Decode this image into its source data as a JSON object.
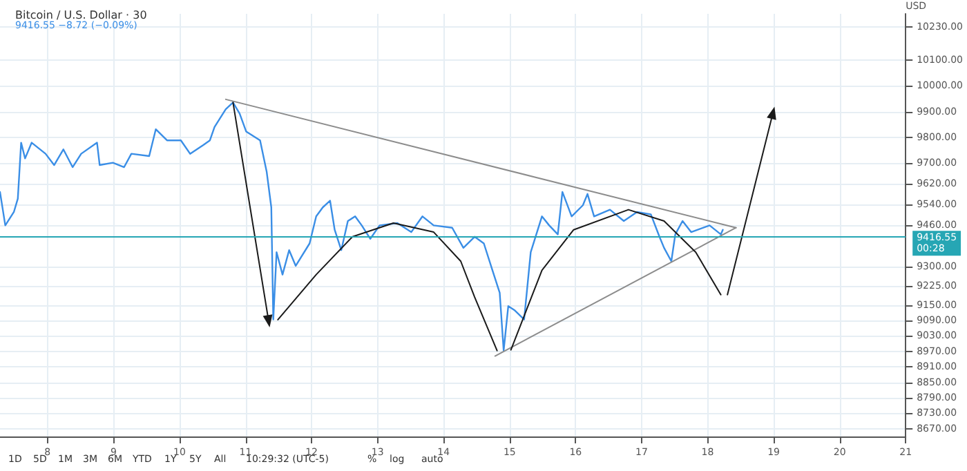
{
  "chart_data": {
    "type": "line",
    "title": "Bitcoin / U.S. Dollar · 30",
    "subtitle": "9416.55 −8.72 (−0.09%)",
    "ylabel": "USD",
    "xlim": [
      7.28,
      21.0
    ],
    "xticks": [
      8,
      9,
      10,
      11,
      12,
      13,
      14,
      15,
      16,
      17,
      18,
      19,
      20,
      21
    ],
    "ylim": [
      8640,
      10280
    ],
    "yticks": [
      {
        "value": 10230,
        "label": "10230.00"
      },
      {
        "value": 10100,
        "label": "10100.00"
      },
      {
        "value": 10000,
        "label": "10000.00"
      },
      {
        "value": 9900,
        "label": "9900.00"
      },
      {
        "value": 9800,
        "label": "9800.00"
      },
      {
        "value": 9700,
        "label": "9700.00"
      },
      {
        "value": 9620,
        "label": "9620.00"
      },
      {
        "value": 9540,
        "label": "9540.00"
      },
      {
        "value": 9460,
        "label": "9460.00"
      },
      {
        "value": 9300,
        "label": "9300.00"
      },
      {
        "value": 9225,
        "label": "9225.00"
      },
      {
        "value": 9150,
        "label": "9150.00"
      },
      {
        "value": 9090,
        "label": "9090.00"
      },
      {
        "value": 9030,
        "label": "9030.00"
      },
      {
        "value": 8970,
        "label": "8970.00"
      },
      {
        "value": 8910,
        "label": "8910.00"
      },
      {
        "value": 8850,
        "label": "8850.00"
      },
      {
        "value": 8790,
        "label": "8790.00"
      },
      {
        "value": 8730,
        "label": "8730.00"
      },
      {
        "value": 8670,
        "label": "8670.00"
      }
    ],
    "grid": true,
    "marker": "none",
    "line_style": "solid",
    "series": [
      {
        "color": "#3a8ee6",
        "x": [
          7.28,
          7.36,
          7.49,
          7.55,
          7.6,
          7.66,
          7.76,
          7.97,
          8.1,
          8.24,
          8.38,
          8.51,
          8.75,
          8.79,
          8.99,
          9.16,
          9.27,
          9.54,
          9.64,
          9.81,
          10.02,
          10.16,
          10.36,
          10.46,
          10.53,
          10.7,
          10.81,
          10.91,
          11.01,
          11.22,
          11.32,
          11.39,
          11.42,
          11.47,
          11.56,
          11.66,
          11.76,
          11.97,
          12.07,
          12.17,
          12.28,
          12.35,
          12.45,
          12.55,
          12.66,
          12.76,
          12.89,
          13.03,
          13.3,
          13.51,
          13.68,
          13.85,
          14.13,
          14.3,
          14.47,
          14.61,
          14.74,
          14.85,
          14.91,
          14.98,
          15.08,
          15.22,
          15.32,
          15.49,
          15.6,
          15.73,
          15.8,
          15.94,
          16.11,
          16.18,
          16.28,
          16.52,
          16.73,
          16.93,
          17.14,
          17.27,
          17.34,
          17.45,
          17.51,
          17.62,
          17.75,
          18.03,
          18.2,
          18.23
        ],
        "values": [
          9589,
          9459,
          9511,
          9563,
          9780,
          9719,
          9780,
          9737,
          9693,
          9754,
          9685,
          9737,
          9780,
          9693,
          9702,
          9685,
          9737,
          9728,
          9832,
          9789,
          9789,
          9737,
          9771,
          9789,
          9841,
          9910,
          9936,
          9893,
          9823,
          9789,
          9667,
          9529,
          9094,
          9355,
          9268,
          9363,
          9302,
          9389,
          9494,
          9529,
          9555,
          9442,
          9363,
          9476,
          9494,
          9459,
          9407,
          9459,
          9468,
          9433,
          9494,
          9459,
          9450,
          9372,
          9415,
          9389,
          9285,
          9198,
          8973,
          9146,
          9129,
          9094,
          9355,
          9494,
          9459,
          9424,
          9589,
          9494,
          9537,
          9581,
          9494,
          9520,
          9476,
          9511,
          9502,
          9415,
          9372,
          9320,
          9424,
          9476,
          9433,
          9459,
          9424,
          9442
        ]
      },
      {
        "color": "#8c8c8c",
        "x": [
          10.7,
          18.43
        ],
        "values": [
          9948,
          9450
        ]
      },
      {
        "color": "#8c8c8c",
        "x": [
          14.78,
          18.43
        ],
        "values": [
          8952,
          9450
        ]
      },
      {
        "color": "#1a1a1a",
        "marker": "triangle",
        "x": [
          10.81,
          11.35
        ],
        "values": [
          9936,
          9087
        ]
      },
      {
        "color": "#1a1a1a",
        "x": [
          11.49,
          12.07,
          12.62,
          13.24,
          13.85,
          14.26,
          14.47,
          14.81
        ],
        "values": [
          9093,
          9268,
          9415,
          9468,
          9433,
          9320,
          9181,
          8973
        ]
      },
      {
        "color": "#1a1a1a",
        "x": [
          15.02,
          15.49,
          15.97,
          16.8,
          17.34,
          17.82,
          18.2
        ],
        "values": [
          8976,
          9285,
          9442,
          9520,
          9476,
          9355,
          9190
        ]
      },
      {
        "color": "#1a1a1a",
        "marker": "triangle",
        "x": [
          18.3,
          18.99
        ],
        "values": [
          9190,
          9896
        ]
      }
    ],
    "ref_lines": [
      {
        "axis": "y",
        "value": 9416.55,
        "label": "9416.55\n00:28",
        "color": "#26a6b4"
      }
    ],
    "annotations": [
      "1D",
      "5D",
      "1M",
      "3M",
      "6M",
      "YTD",
      "1Y",
      "5Y",
      "All",
      "10:29:32 (UTC-5)",
      "%",
      "log",
      "auto"
    ]
  }
}
